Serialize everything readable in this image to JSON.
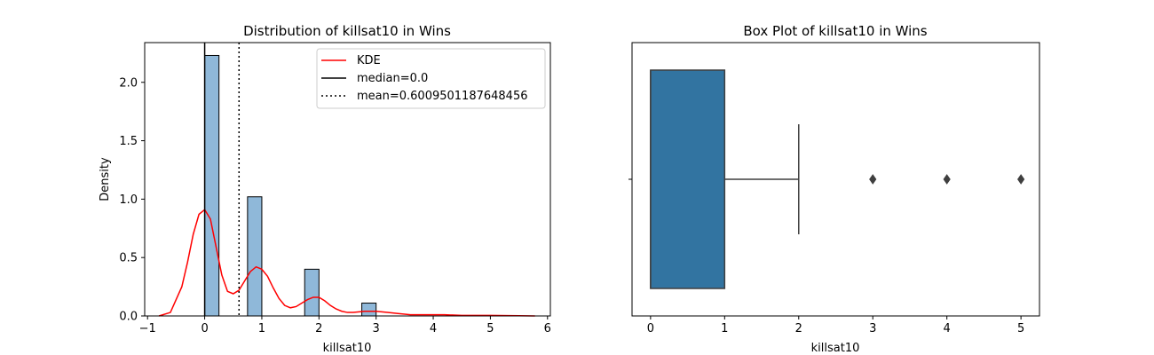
{
  "chart_data": [
    {
      "type": "histogram",
      "title": "Distribution of killsat10 in Wins",
      "xlabel": "killsat10",
      "ylabel": "Density",
      "xlim": [
        -1.05,
        6.05
      ],
      "ylim": [
        0,
        2.34
      ],
      "xticks": [
        -1,
        0,
        1,
        2,
        3,
        4,
        5,
        6
      ],
      "yticks": [
        0.0,
        0.5,
        1.0,
        1.5,
        2.0
      ],
      "bin_width": 0.25,
      "bars": [
        {
          "x0": 0.0,
          "x1": 0.25,
          "density": 2.23
        },
        {
          "x0": 0.75,
          "x1": 1.0,
          "density": 1.02
        },
        {
          "x0": 1.75,
          "x1": 2.0,
          "density": 0.4
        },
        {
          "x0": 2.75,
          "x1": 3.0,
          "density": 0.11
        }
      ],
      "bar_color": "#8fb8d9",
      "kde": {
        "name": "KDE",
        "color": "#ff0000",
        "x": [
          -0.8,
          -0.6,
          -0.4,
          -0.3,
          -0.2,
          -0.1,
          0.0,
          0.1,
          0.2,
          0.3,
          0.4,
          0.5,
          0.6,
          0.7,
          0.8,
          0.9,
          1.0,
          1.1,
          1.2,
          1.3,
          1.4,
          1.5,
          1.6,
          1.7,
          1.8,
          1.9,
          2.0,
          2.1,
          2.2,
          2.3,
          2.4,
          2.5,
          2.6,
          2.8,
          3.0,
          3.2,
          3.4,
          3.6,
          3.8,
          4.0,
          4.2,
          4.5,
          5.0,
          5.5,
          5.78
        ],
        "y": [
          0.0,
          0.03,
          0.25,
          0.46,
          0.7,
          0.87,
          0.91,
          0.83,
          0.59,
          0.35,
          0.21,
          0.19,
          0.22,
          0.3,
          0.38,
          0.42,
          0.4,
          0.34,
          0.24,
          0.15,
          0.09,
          0.07,
          0.08,
          0.11,
          0.14,
          0.16,
          0.16,
          0.13,
          0.09,
          0.06,
          0.04,
          0.03,
          0.03,
          0.04,
          0.04,
          0.03,
          0.02,
          0.01,
          0.01,
          0.01,
          0.01,
          0.005,
          0.005,
          0.002,
          0.0
        ]
      },
      "median": {
        "label": "median=0.0",
        "value": 0.0
      },
      "mean": {
        "label": "mean=0.6009501187648456",
        "value": 0.6009501187648456
      },
      "legend_position": "top-right"
    },
    {
      "type": "box",
      "title": "Box Plot of killsat10 in Wins",
      "xlabel": "killsat10",
      "xlim": [
        -0.25,
        5.25
      ],
      "xticks": [
        0,
        1,
        2,
        3,
        4,
        5
      ],
      "box_color": "#3274a1",
      "q1": 0,
      "median": 0,
      "q3": 1,
      "whisker_low": 0,
      "whisker_high": 2,
      "outliers": [
        3,
        4,
        5
      ]
    }
  ]
}
